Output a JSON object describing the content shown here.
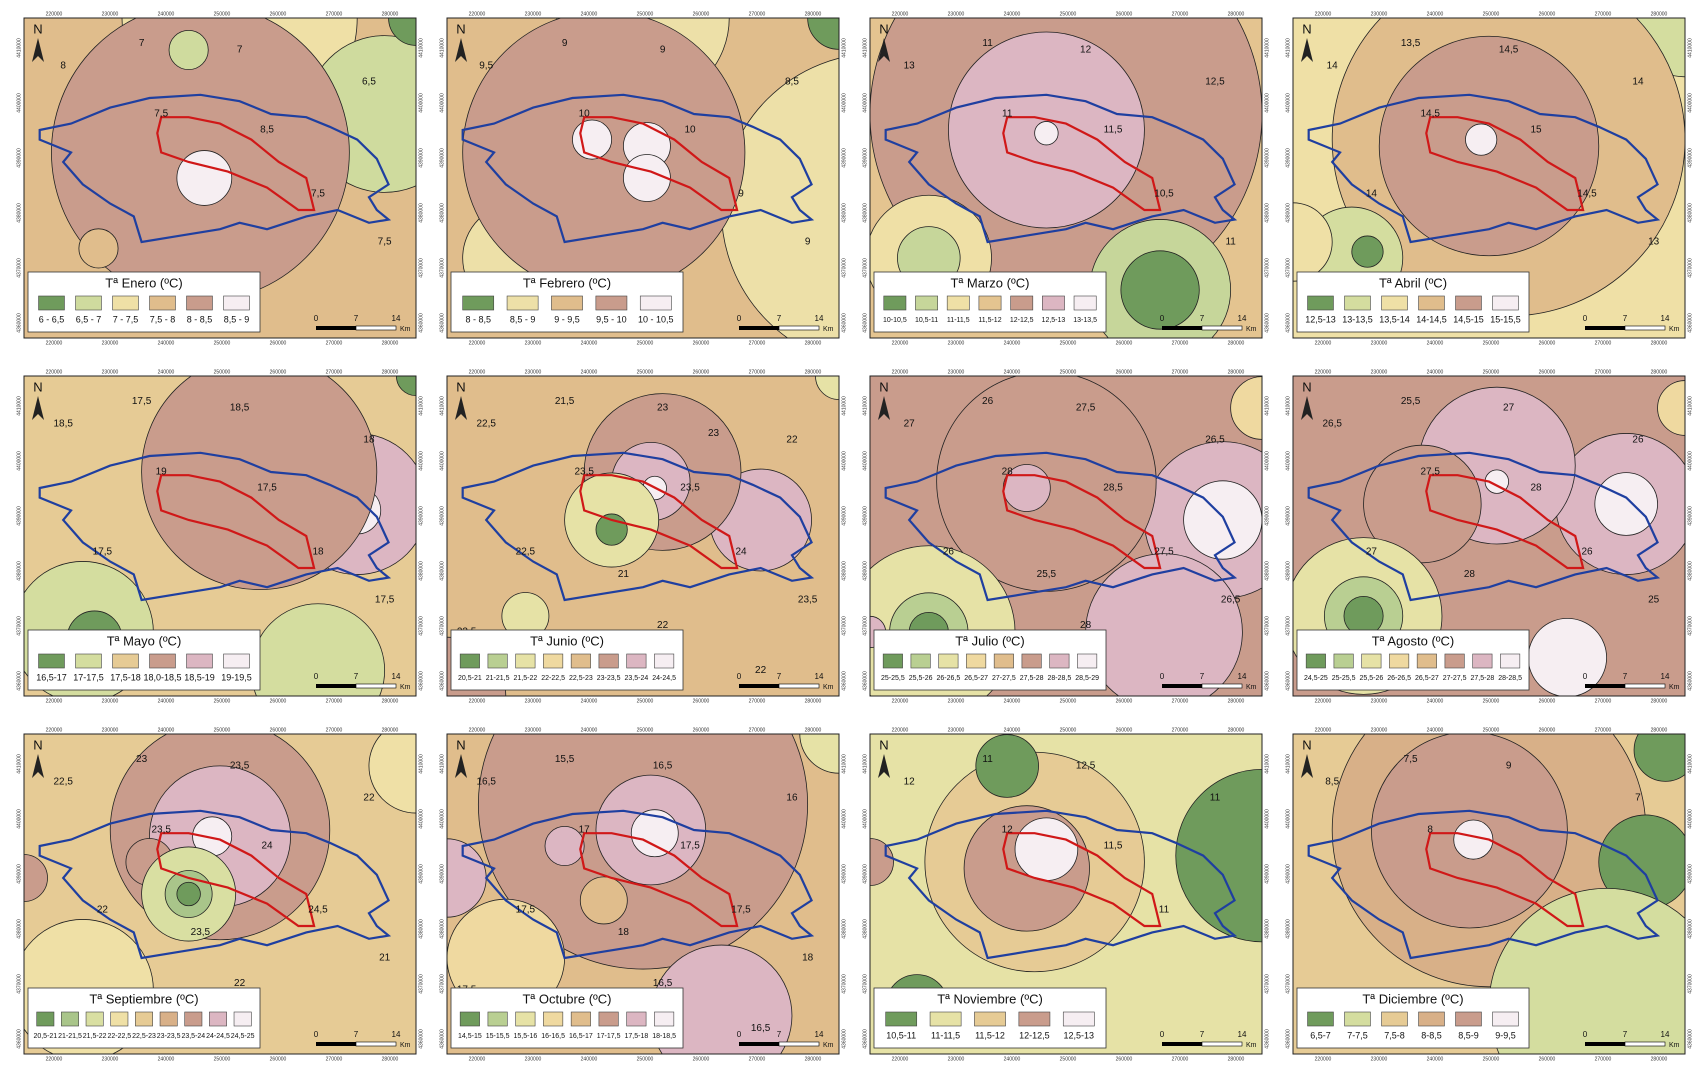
{
  "axes": {
    "x_ticks": [
      "220000",
      "230000",
      "240000",
      "250000",
      "260000",
      "270000",
      "280000"
    ],
    "y_ticks": [
      "4410000",
      "4400000",
      "4390000",
      "4380000",
      "4370000",
      "4360000"
    ],
    "north": "N",
    "scale": [
      "0",
      "7",
      "14",
      "Km"
    ]
  },
  "maps": [
    {
      "title": "Tª Enero (ºC)",
      "legend": [
        {
          "label": "6 - 6,5",
          "color": "#6f9b5c"
        },
        {
          "label": "6,5 - 7",
          "color": "#cfdb9e"
        },
        {
          "label": "7 - 7,5",
          "color": "#efe0a6"
        },
        {
          "label": "7,5 - 8",
          "color": "#e0bd8c"
        },
        {
          "label": "8 - 8,5",
          "color": "#c99c8c"
        },
        {
          "label": "8,5 - 9",
          "color": "#f6eef2"
        }
      ],
      "contours": [
        "7",
        "6,5",
        "8",
        "7",
        "7,5",
        "8,5",
        "7,5",
        "7,5"
      ]
    },
    {
      "title": "Tª Febrero (ºC)",
      "legend": [
        {
          "label": "8 - 8,5",
          "color": "#6f9b5c"
        },
        {
          "label": "8,5 - 9",
          "color": "#ede0a8"
        },
        {
          "label": "9 - 9,5",
          "color": "#e0bd8c"
        },
        {
          "label": "9,5 - 10",
          "color": "#c99c8c"
        },
        {
          "label": "10 - 10,5",
          "color": "#f6eef2"
        }
      ],
      "contours": [
        "9",
        "8,5",
        "9,5",
        "9",
        "10",
        "10",
        "9",
        "9"
      ]
    },
    {
      "title": "Tª Marzo (ºC)",
      "legend": [
        {
          "label": "10-10,5",
          "color": "#6f9b5c"
        },
        {
          "label": "10,5-11",
          "color": "#c6d69a"
        },
        {
          "label": "11-11,5",
          "color": "#efe0a6"
        },
        {
          "label": "11,5-12",
          "color": "#e4c490"
        },
        {
          "label": "12-12,5",
          "color": "#c99c8c"
        },
        {
          "label": "12,5-13",
          "color": "#dcb6c2"
        },
        {
          "label": "13-13,5",
          "color": "#f6eef2"
        }
      ],
      "contours": [
        "11",
        "12,5",
        "13",
        "12",
        "11",
        "11,5",
        "10,5",
        "11"
      ]
    },
    {
      "title": "Tª Abril (ºC)",
      "legend": [
        {
          "label": "12,5-13",
          "color": "#6f9b5c"
        },
        {
          "label": "13-13,5",
          "color": "#d4dd9f"
        },
        {
          "label": "13,5-14",
          "color": "#efe0a6"
        },
        {
          "label": "14-14,5",
          "color": "#e0bd8c"
        },
        {
          "label": "14,5-15",
          "color": "#c99c8c"
        },
        {
          "label": "15-15,5",
          "color": "#f6eef2"
        }
      ],
      "contours": [
        "13,5",
        "14",
        "14",
        "14,5",
        "14,5",
        "15",
        "14,5",
        "13",
        "14"
      ]
    },
    {
      "title": "Tª Mayo (ºC)",
      "legend": [
        {
          "label": "16,5-17",
          "color": "#6f9b5c"
        },
        {
          "label": "17-17,5",
          "color": "#d4dd9f"
        },
        {
          "label": "17,5-18",
          "color": "#e6cb95"
        },
        {
          "label": "18,0-18,5",
          "color": "#c99c8c"
        },
        {
          "label": "18,5-19",
          "color": "#dcb6c2"
        },
        {
          "label": "19-19,5",
          "color": "#f6eef2"
        }
      ],
      "contours": [
        "17,5",
        "18",
        "18,5",
        "18,5",
        "19",
        "17,5",
        "18",
        "17,5",
        "17,5"
      ]
    },
    {
      "title": "Tª Junio (ºC)",
      "legend": [
        {
          "label": "20,5-21",
          "color": "#6f9b5c"
        },
        {
          "label": "21-21,5",
          "color": "#b9cf92"
        },
        {
          "label": "21,5-22",
          "color": "#e6e2a6"
        },
        {
          "label": "22-22,5",
          "color": "#efd9a0"
        },
        {
          "label": "22,5-23",
          "color": "#e0bd8c"
        },
        {
          "label": "23-23,5",
          "color": "#c99c8c"
        },
        {
          "label": "23,5-24",
          "color": "#dcb6c2"
        },
        {
          "label": "24-24,5",
          "color": "#f6eef2"
        }
      ],
      "contours": [
        "21,5",
        "22",
        "22,5",
        "23",
        "23,5",
        "23,5",
        "24",
        "23,5",
        "22,5",
        "21",
        "22",
        "22",
        "23,5",
        "23"
      ]
    },
    {
      "title": "Tª Julio (ºC)",
      "legend": [
        {
          "label": "25-25,5",
          "color": "#6f9b5c"
        },
        {
          "label": "25,5-26",
          "color": "#b9cf92"
        },
        {
          "label": "26-26,5",
          "color": "#e6e2a6"
        },
        {
          "label": "26,5-27",
          "color": "#efd9a0"
        },
        {
          "label": "27-27,5",
          "color": "#e0bd8c"
        },
        {
          "label": "27,5-28",
          "color": "#c99c8c"
        },
        {
          "label": "28-28,5",
          "color": "#dcb6c2"
        },
        {
          "label": "28,5-29",
          "color": "#f6eef2"
        }
      ],
      "contours": [
        "26",
        "26,5",
        "27",
        "27,5",
        "28",
        "28,5",
        "27,5",
        "26,5",
        "26",
        "25,5",
        "28"
      ]
    },
    {
      "title": "Tª Agosto (ºC)",
      "legend": [
        {
          "label": "24,5-25",
          "color": "#6f9b5c"
        },
        {
          "label": "25-25,5",
          "color": "#b9cf92"
        },
        {
          "label": "25,5-26",
          "color": "#e6e2a6"
        },
        {
          "label": "26-26,5",
          "color": "#efd9a0"
        },
        {
          "label": "26,5-27",
          "color": "#e0bd8c"
        },
        {
          "label": "27-27,5",
          "color": "#c99c8c"
        },
        {
          "label": "27,5-28",
          "color": "#dcb6c2"
        },
        {
          "label": "28-28,5",
          "color": "#f6eef2"
        }
      ],
      "contours": [
        "25,5",
        "26",
        "26,5",
        "27",
        "27,5",
        "28",
        "26",
        "25",
        "27",
        "28"
      ]
    },
    {
      "title": "Tª Septiembre (ºC)",
      "legend": [
        {
          "label": "20,5-21",
          "color": "#6f9b5c"
        },
        {
          "label": "21-21,5",
          "color": "#a9c58a"
        },
        {
          "label": "21,5-22",
          "color": "#d9dfa2"
        },
        {
          "label": "22-22,5",
          "color": "#efe0a6"
        },
        {
          "label": "22,5-23",
          "color": "#e6cb95"
        },
        {
          "label": "23-23,5",
          "color": "#d8b088"
        },
        {
          "label": "23,5-24",
          "color": "#c99c8c"
        },
        {
          "label": "24-24,5",
          "color": "#dcb6c2"
        },
        {
          "label": "24,5-25",
          "color": "#f6eef2"
        }
      ],
      "contours": [
        "23",
        "22",
        "22,5",
        "23,5",
        "23,5",
        "24",
        "24,5",
        "21",
        "22",
        "23,5",
        "22"
      ]
    },
    {
      "title": "Tª Octubre (ºC)",
      "legend": [
        {
          "label": "14,5-15",
          "color": "#6f9b5c"
        },
        {
          "label": "15-15,5",
          "color": "#b9cf92"
        },
        {
          "label": "15,5-16",
          "color": "#e6e2a6"
        },
        {
          "label": "16-16,5",
          "color": "#efd9a0"
        },
        {
          "label": "16,5-17",
          "color": "#e0bd8c"
        },
        {
          "label": "17-17,5",
          "color": "#c99c8c"
        },
        {
          "label": "17,5-18",
          "color": "#dcb6c2"
        },
        {
          "label": "18-18,5",
          "color": "#f6eef2"
        }
      ],
      "contours": [
        "15,5",
        "16",
        "16,5",
        "16,5",
        "17",
        "17,5",
        "17,5",
        "18",
        "17,5",
        "18",
        "16,5",
        "16,5",
        "17,5"
      ]
    },
    {
      "title": "Tª Noviembre (ºC)",
      "legend": [
        {
          "label": "10,5-11",
          "color": "#6f9b5c"
        },
        {
          "label": "11-11,5",
          "color": "#e6e2a6"
        },
        {
          "label": "11,5-12",
          "color": "#e6cb95"
        },
        {
          "label": "12-12,5",
          "color": "#c99c8c"
        },
        {
          "label": "12,5-13",
          "color": "#f6eef2"
        }
      ],
      "contours": [
        "11",
        "11",
        "12",
        "12,5",
        "12",
        "11,5",
        "11"
      ]
    },
    {
      "title": "Tª Diciembre (ºC)",
      "legend": [
        {
          "label": "6,5-7",
          "color": "#6f9b5c"
        },
        {
          "label": "7-7,5",
          "color": "#d4dd9f"
        },
        {
          "label": "7,5-8",
          "color": "#e6cb95"
        },
        {
          "label": "8-8,5",
          "color": "#d8b088"
        },
        {
          "label": "8,5-9",
          "color": "#c99c8c"
        },
        {
          "label": "9-9,5",
          "color": "#f6eef2"
        }
      ],
      "contours": [
        "7,5",
        "7",
        "8,5",
        "9",
        "8"
      ]
    }
  ]
}
